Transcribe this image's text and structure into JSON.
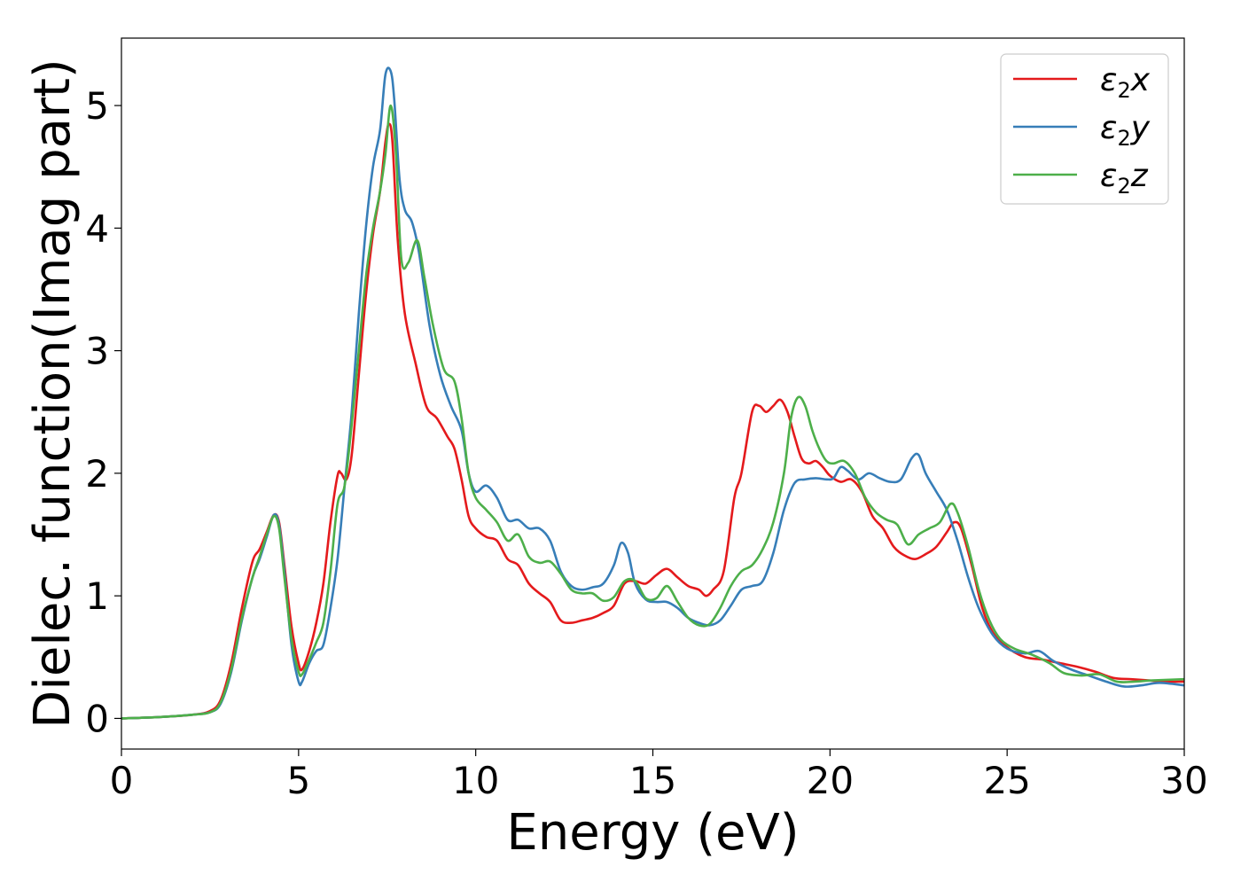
{
  "chart_data": {
    "type": "line",
    "title": "",
    "xlabel": "Energy (eV)",
    "ylabel": "Dielec. function(Imag part)",
    "xlim": [
      0,
      30
    ],
    "ylim": [
      -0.25,
      5.55
    ],
    "xticks": [
      0,
      5,
      10,
      15,
      20,
      25,
      30
    ],
    "yticks": [
      0,
      1,
      2,
      3,
      4,
      5
    ],
    "grid": false,
    "legend_position": "top-right",
    "series": [
      {
        "name": "ε₂x",
        "legend": {
          "base": "ε",
          "sub": "2",
          "axis": "x"
        },
        "color": "#e41a1c",
        "x": [
          0,
          1,
          2,
          2.5,
          2.8,
          3.1,
          3.4,
          3.7,
          3.9,
          4.1,
          4.3,
          4.45,
          4.6,
          4.8,
          5.0,
          5.1,
          5.3,
          5.5,
          5.7,
          5.9,
          6.1,
          6.2,
          6.35,
          6.5,
          6.7,
          6.9,
          7.1,
          7.3,
          7.45,
          7.55,
          7.65,
          7.8,
          8.0,
          8.3,
          8.6,
          8.9,
          9.2,
          9.4,
          9.6,
          9.8,
          10.0,
          10.3,
          10.6,
          10.9,
          11.2,
          11.5,
          11.8,
          12.1,
          12.4,
          12.7,
          13.0,
          13.3,
          13.6,
          13.9,
          14.2,
          14.5,
          14.8,
          15.1,
          15.4,
          15.7,
          16.0,
          16.3,
          16.5,
          16.7,
          17.0,
          17.3,
          17.5,
          17.8,
          18.0,
          18.2,
          18.4,
          18.6,
          18.8,
          19.0,
          19.2,
          19.4,
          19.6,
          19.8,
          20.0,
          20.3,
          20.6,
          20.9,
          21.2,
          21.5,
          21.8,
          22.1,
          22.4,
          22.7,
          23.0,
          23.3,
          23.5,
          23.7,
          24.0,
          24.3,
          24.6,
          25.0,
          25.5,
          26.0,
          26.5,
          27.0,
          27.5,
          28.0,
          28.5,
          29.0,
          29.5,
          30
        ],
        "y": [
          0.0,
          0.01,
          0.03,
          0.06,
          0.15,
          0.45,
          0.9,
          1.28,
          1.38,
          1.52,
          1.66,
          1.6,
          1.25,
          0.75,
          0.45,
          0.4,
          0.55,
          0.78,
          1.1,
          1.6,
          1.98,
          2.0,
          1.95,
          2.15,
          2.8,
          3.45,
          3.95,
          4.3,
          4.7,
          4.85,
          4.7,
          3.9,
          3.3,
          2.9,
          2.55,
          2.45,
          2.3,
          2.2,
          1.95,
          1.65,
          1.55,
          1.48,
          1.45,
          1.3,
          1.25,
          1.1,
          1.02,
          0.95,
          0.8,
          0.78,
          0.8,
          0.82,
          0.86,
          0.92,
          1.1,
          1.12,
          1.1,
          1.17,
          1.22,
          1.15,
          1.08,
          1.05,
          1.0,
          1.05,
          1.2,
          1.8,
          2.0,
          2.5,
          2.55,
          2.5,
          2.55,
          2.6,
          2.5,
          2.3,
          2.12,
          2.08,
          2.1,
          2.05,
          1.98,
          1.93,
          1.95,
          1.85,
          1.65,
          1.55,
          1.4,
          1.33,
          1.3,
          1.34,
          1.4,
          1.52,
          1.6,
          1.55,
          1.25,
          0.9,
          0.7,
          0.58,
          0.5,
          0.48,
          0.45,
          0.42,
          0.38,
          0.33,
          0.32,
          0.31,
          0.3,
          0.3
        ]
      },
      {
        "name": "ε₂y",
        "legend": {
          "base": "ε",
          "sub": "2",
          "axis": "y"
        },
        "color": "#377eb8",
        "x": [
          0,
          1,
          2,
          2.5,
          2.8,
          3.1,
          3.4,
          3.7,
          3.9,
          4.1,
          4.3,
          4.45,
          4.6,
          4.8,
          5.0,
          5.1,
          5.3,
          5.5,
          5.7,
          5.9,
          6.1,
          6.3,
          6.5,
          6.7,
          6.9,
          7.1,
          7.3,
          7.45,
          7.6,
          7.7,
          7.85,
          8.0,
          8.2,
          8.4,
          8.7,
          9.0,
          9.3,
          9.6,
          9.8,
          10.0,
          10.3,
          10.6,
          10.9,
          11.2,
          11.5,
          11.8,
          12.1,
          12.4,
          12.7,
          13.0,
          13.3,
          13.6,
          13.9,
          14.1,
          14.3,
          14.5,
          14.8,
          15.1,
          15.4,
          15.7,
          16.0,
          16.3,
          16.6,
          16.9,
          17.2,
          17.5,
          17.8,
          18.1,
          18.4,
          18.7,
          19.0,
          19.3,
          19.6,
          19.9,
          20.1,
          20.3,
          20.5,
          20.8,
          21.1,
          21.4,
          21.7,
          22.0,
          22.3,
          22.5,
          22.7,
          23.0,
          23.3,
          23.6,
          23.9,
          24.2,
          24.6,
          25.0,
          25.5,
          25.9,
          26.3,
          26.8,
          27.3,
          27.8,
          28.3,
          28.8,
          29.3,
          30
        ],
        "y": [
          0.0,
          0.01,
          0.03,
          0.05,
          0.12,
          0.38,
          0.8,
          1.15,
          1.3,
          1.48,
          1.66,
          1.58,
          1.2,
          0.6,
          0.3,
          0.3,
          0.45,
          0.55,
          0.6,
          0.9,
          1.3,
          1.9,
          2.5,
          3.3,
          4.0,
          4.5,
          4.8,
          5.25,
          5.28,
          5.05,
          4.4,
          4.15,
          4.05,
          3.8,
          3.2,
          2.8,
          2.55,
          2.35,
          2.0,
          1.85,
          1.9,
          1.8,
          1.62,
          1.62,
          1.55,
          1.55,
          1.45,
          1.2,
          1.08,
          1.05,
          1.07,
          1.1,
          1.25,
          1.43,
          1.35,
          1.1,
          0.97,
          0.95,
          0.95,
          0.9,
          0.82,
          0.78,
          0.76,
          0.8,
          0.92,
          1.05,
          1.08,
          1.12,
          1.35,
          1.7,
          1.92,
          1.95,
          1.96,
          1.95,
          1.96,
          2.05,
          2.02,
          1.95,
          2.0,
          1.96,
          1.93,
          1.95,
          2.12,
          2.15,
          2.0,
          1.85,
          1.7,
          1.45,
          1.15,
          0.9,
          0.68,
          0.57,
          0.53,
          0.55,
          0.47,
          0.4,
          0.35,
          0.3,
          0.26,
          0.27,
          0.29,
          0.27
        ]
      },
      {
        "name": "ε₂z",
        "legend": {
          "base": "ε",
          "sub": "2",
          "axis": "z"
        },
        "color": "#4daf4a",
        "x": [
          0,
          1,
          2,
          2.5,
          2.8,
          3.1,
          3.4,
          3.7,
          3.9,
          4.1,
          4.3,
          4.45,
          4.6,
          4.8,
          5.0,
          5.1,
          5.3,
          5.5,
          5.7,
          5.9,
          6.1,
          6.3,
          6.5,
          6.7,
          6.9,
          7.1,
          7.3,
          7.45,
          7.6,
          7.75,
          7.9,
          8.1,
          8.35,
          8.55,
          8.8,
          9.1,
          9.4,
          9.6,
          9.8,
          10.0,
          10.3,
          10.6,
          10.9,
          11.2,
          11.5,
          11.8,
          12.1,
          12.4,
          12.7,
          13.0,
          13.3,
          13.6,
          13.9,
          14.2,
          14.5,
          14.8,
          15.1,
          15.4,
          15.7,
          16.0,
          16.3,
          16.6,
          16.9,
          17.2,
          17.5,
          17.8,
          18.1,
          18.4,
          18.7,
          18.9,
          19.1,
          19.3,
          19.5,
          19.7,
          19.9,
          20.1,
          20.4,
          20.7,
          21.0,
          21.3,
          21.6,
          21.9,
          22.2,
          22.5,
          22.8,
          23.1,
          23.4,
          23.6,
          23.9,
          24.2,
          24.5,
          24.8,
          25.2,
          25.7,
          26.2,
          26.6,
          27.1,
          27.6,
          28.1,
          28.6,
          29.1,
          30
        ],
        "y": [
          0.0,
          0.01,
          0.03,
          0.05,
          0.13,
          0.4,
          0.82,
          1.15,
          1.32,
          1.5,
          1.65,
          1.55,
          1.15,
          0.65,
          0.38,
          0.36,
          0.48,
          0.62,
          0.78,
          1.2,
          1.75,
          1.9,
          2.4,
          3.0,
          3.6,
          4.0,
          4.3,
          4.6,
          5.0,
          4.6,
          3.75,
          3.72,
          3.9,
          3.6,
          3.2,
          2.85,
          2.75,
          2.45,
          2.0,
          1.8,
          1.7,
          1.6,
          1.45,
          1.5,
          1.32,
          1.27,
          1.28,
          1.18,
          1.05,
          1.02,
          1.02,
          0.96,
          0.99,
          1.12,
          1.12,
          0.98,
          0.98,
          1.08,
          0.95,
          0.82,
          0.76,
          0.77,
          0.9,
          1.08,
          1.2,
          1.25,
          1.38,
          1.6,
          2.0,
          2.45,
          2.62,
          2.55,
          2.35,
          2.2,
          2.1,
          2.08,
          2.1,
          2.0,
          1.8,
          1.68,
          1.62,
          1.58,
          1.42,
          1.5,
          1.55,
          1.6,
          1.75,
          1.68,
          1.4,
          1.05,
          0.8,
          0.65,
          0.57,
          0.52,
          0.45,
          0.37,
          0.35,
          0.36,
          0.3,
          0.3,
          0.31,
          0.32
        ]
      }
    ]
  }
}
